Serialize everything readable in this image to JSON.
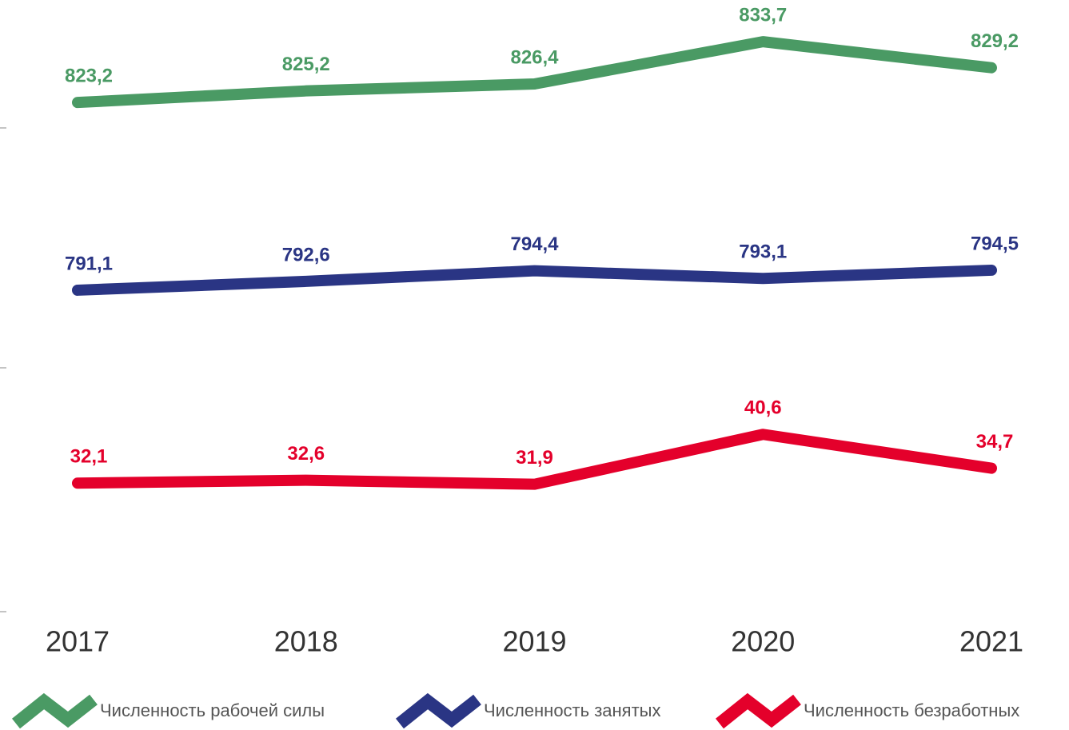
{
  "chart_data": {
    "type": "line",
    "categories": [
      "2017",
      "2018",
      "2019",
      "2020",
      "2021"
    ],
    "series": [
      {
        "name": "Численность рабочей силы",
        "color": "#4a9a64",
        "values": [
          823.2,
          825.2,
          826.4,
          833.7,
          829.2
        ],
        "value_labels": [
          "823,2",
          "825,2",
          "826,4",
          "833,7",
          "829,2"
        ],
        "ylim": [
          818.8,
          840.9
        ]
      },
      {
        "name": "Численность занятых",
        "color": "#2a3584",
        "values": [
          791.1,
          792.6,
          794.4,
          793.1,
          794.5
        ],
        "value_labels": [
          "791,1",
          "792,6",
          "794,4",
          "793,1",
          "794,5"
        ],
        "ylim": [
          777.9,
          818.7
        ]
      },
      {
        "name": "Численность безработных",
        "color": "#e4002b",
        "values": [
          32.1,
          32.6,
          31.9,
          40.6,
          34.7
        ],
        "value_labels": [
          "32,1",
          "32,6",
          "31,9",
          "40,6",
          "34,7"
        ],
        "ylim": [
          9.7,
          52.2
        ]
      }
    ]
  }
}
